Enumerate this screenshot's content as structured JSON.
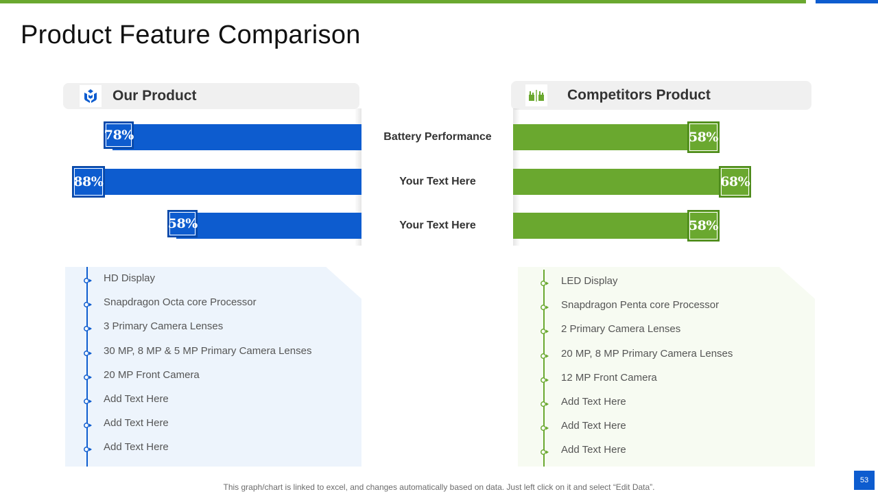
{
  "title": "Product Feature Comparison",
  "colors": {
    "our": "#0d5ccf",
    "competitor": "#6aa82f",
    "accent_top": "#6aa82f"
  },
  "our_product": {
    "label": "Our Product",
    "icon": "product-blocks-icon",
    "features": [
      "HD Display",
      "Snapdragon Octa core Processor",
      "3 Primary Camera Lenses",
      "30 MP, 8 MP & 5 MP Primary Camera Lenses",
      "20 MP Front Camera",
      "Add Text Here",
      "Add Text Here",
      "Add Text Here"
    ]
  },
  "competitor_product": {
    "label": "Competitors  Product",
    "icon": "factory-icon",
    "features": [
      "LED Display",
      "Snapdragon Penta core Processor",
      "2 Primary Camera Lenses",
      "20 MP, 8 MP Primary Camera Lenses",
      "12 MP Front Camera",
      "Add Text Here",
      "Add Text Here",
      "Add Text Here"
    ]
  },
  "chart_data": {
    "type": "bar",
    "orientation": "horizontal-butterfly",
    "categories": [
      "Battery Performance",
      "Your Text Here",
      "Your Text Here"
    ],
    "series": [
      {
        "name": "Our Product",
        "values": [
          78,
          88,
          58
        ],
        "labels": [
          "78%",
          "88%",
          "58%"
        ]
      },
      {
        "name": "Competitors  Product",
        "values": [
          58,
          68,
          58
        ],
        "labels": [
          "58%",
          "68%",
          "58%"
        ]
      }
    ],
    "unit": "%"
  },
  "footnote": "This graph/chart is linked to excel, and changes automatically based on data. Just left click on it and select “Edit Data”.",
  "page_number": "53"
}
